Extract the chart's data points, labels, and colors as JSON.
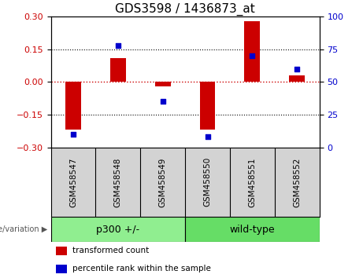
{
  "title": "GDS3598 / 1436873_at",
  "samples": [
    "GSM458547",
    "GSM458548",
    "GSM458549",
    "GSM458550",
    "GSM458551",
    "GSM458552"
  ],
  "transformed_count": [
    -0.22,
    0.11,
    -0.02,
    -0.22,
    0.28,
    0.03
  ],
  "percentile_rank": [
    10,
    78,
    35,
    8,
    70,
    60
  ],
  "ylim_left": [
    -0.3,
    0.3
  ],
  "ylim_right": [
    0,
    100
  ],
  "yticks_left": [
    -0.3,
    -0.15,
    0,
    0.15,
    0.3
  ],
  "yticks_right": [
    0,
    25,
    50,
    75,
    100
  ],
  "hlines": [
    0.15,
    0,
    -0.15
  ],
  "bar_color": "#cc0000",
  "scatter_color": "#0000cc",
  "bar_width": 0.35,
  "groups": [
    {
      "label": "p300 +/-",
      "indices": [
        0,
        1,
        2
      ],
      "color": "#90ee90"
    },
    {
      "label": "wild-type",
      "indices": [
        3,
        4,
        5
      ],
      "color": "#66dd66"
    }
  ],
  "legend_items": [
    {
      "label": "transformed count",
      "color": "#cc0000"
    },
    {
      "label": "percentile rank within the sample",
      "color": "#0000cc"
    }
  ],
  "tick_label_color_left": "#cc0000",
  "tick_label_color_right": "#0000cc",
  "bg_color_plot": "#ffffff",
  "bg_color_sample_row": "#d3d3d3",
  "hline0_color": "#cc0000",
  "hline_other_color": "#000000",
  "title_fontsize": 11,
  "axis_fontsize": 8,
  "legend_fontsize": 7.5,
  "group_fontsize": 9,
  "sample_fontsize": 7.5
}
